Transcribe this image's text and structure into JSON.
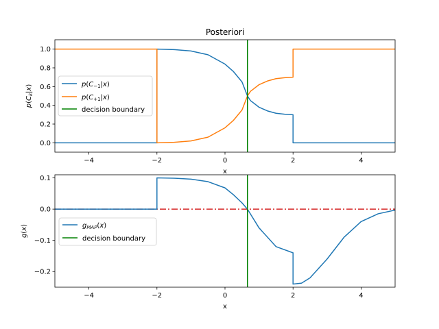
{
  "chart_data": [
    {
      "type": "line",
      "title": "Posteriori",
      "xlabel": "x",
      "ylabel": "p(C_k|x)",
      "xlim": [
        -5,
        5
      ],
      "ylim": [
        -0.1,
        1.1
      ],
      "xticks": [
        "-4",
        "-2",
        "0",
        "2",
        "4"
      ],
      "yticks": [
        "0.0",
        "0.2",
        "0.4",
        "0.6",
        "0.8",
        "1.0"
      ],
      "legend_position": "center-left",
      "series": [
        {
          "name": "p(C₋₁|x)",
          "color": "#1f77b4",
          "x": [
            -5,
            -2,
            -2,
            -1.5,
            -1,
            -0.5,
            0,
            0.25,
            0.5,
            0.66,
            0.75,
            1,
            1.25,
            1.5,
            1.75,
            2,
            2,
            5
          ],
          "y": [
            0,
            0,
            1,
            0.995,
            0.98,
            0.94,
            0.84,
            0.76,
            0.65,
            0.5,
            0.45,
            0.38,
            0.34,
            0.315,
            0.305,
            0.3,
            0,
            0
          ]
        },
        {
          "name": "p(C₊₁|x)",
          "color": "#ff7f0e",
          "x": [
            -5,
            -2,
            -2,
            -1.5,
            -1,
            -0.5,
            0,
            0.25,
            0.5,
            0.66,
            0.75,
            1,
            1.25,
            1.5,
            1.75,
            2,
            2,
            5
          ],
          "y": [
            1,
            1,
            0,
            0.005,
            0.02,
            0.06,
            0.16,
            0.24,
            0.35,
            0.5,
            0.55,
            0.62,
            0.66,
            0.685,
            0.695,
            0.7,
            1,
            1
          ]
        }
      ],
      "vline": {
        "name": "decision boundary",
        "x": 0.66,
        "color": "#008000"
      }
    },
    {
      "type": "line",
      "title": "",
      "xlabel": "x",
      "ylabel": "g(x)",
      "xlim": [
        -5,
        5
      ],
      "ylim": [
        -0.25,
        0.11
      ],
      "xticks": [
        "-4",
        "-2",
        "0",
        "2",
        "4"
      ],
      "yticks": [
        "0.1",
        "0.0",
        "−0.1",
        "−0.2"
      ],
      "legend_position": "center-left",
      "series": [
        {
          "name": "g_MAP(x)",
          "color": "#1f77b4",
          "x": [
            -5,
            -2,
            -2,
            -1.5,
            -1,
            -0.5,
            0,
            0.25,
            0.5,
            0.66,
            1,
            1.5,
            2,
            2,
            2.25,
            2.5,
            3,
            3.5,
            4,
            4.5,
            5
          ],
          "y": [
            0,
            0,
            0.1,
            0.099,
            0.096,
            0.088,
            0.068,
            0.046,
            0.02,
            0,
            -0.06,
            -0.12,
            -0.14,
            -0.24,
            -0.237,
            -0.22,
            -0.16,
            -0.09,
            -0.04,
            -0.015,
            -0.003
          ]
        }
      ],
      "hline": {
        "y": 0,
        "color": "#d62728"
      },
      "vline": {
        "name": "decision boundary",
        "x": 0.66,
        "color": "#008000"
      }
    }
  ]
}
